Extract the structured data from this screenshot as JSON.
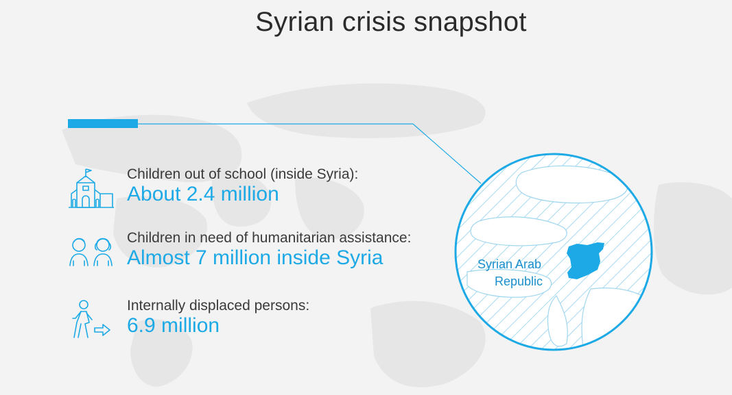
{
  "title": "Syrian crisis snapshot",
  "stats": [
    {
      "label": "Children out of school (inside Syria):",
      "value": "About 2.4 million",
      "icon": "school-icon"
    },
    {
      "label": "Children in need of humanitarian assistance:",
      "value": "Almost 7 million inside Syria",
      "icon": "children-icon"
    },
    {
      "label": "Internally displaced persons:",
      "value": "6.9 million",
      "icon": "displaced-person-icon"
    }
  ],
  "map": {
    "country_label": "Syrian Arab Republic",
    "country_line1": "Syrian Arab",
    "country_line2": "Republic"
  },
  "colors": {
    "accent": "#1ca9e6",
    "text": "#3a3a3a",
    "background": "#f3f3f3",
    "title": "#2b2b2b"
  }
}
